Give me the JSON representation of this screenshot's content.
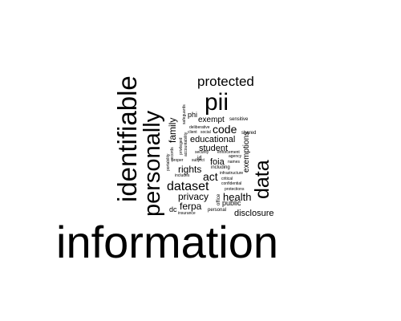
{
  "text_color": "#000000",
  "background": "#ffffff",
  "words": {
    "information": "information",
    "identifiable": "identifiable",
    "personally": "personally",
    "pii": "pii",
    "data": "data",
    "protected": "protected",
    "dataset": "dataset",
    "code": "code",
    "family": "family",
    "educational": "educational",
    "student": "student",
    "rights": "rights",
    "act": "act",
    "privacy": "privacy",
    "health": "health",
    "ferpa": "ferpa",
    "foia": "foia",
    "exempt": "exempt",
    "exemptions": "exemptions",
    "disclosure": "disclosure",
    "public": "public",
    "phi": "phi",
    "sensitive": "sensitive",
    "safeguards": "safeguards",
    "shared": "shared",
    "deliberative": "deliberative",
    "client": "client",
    "social": "social",
    "privileged": "privileged",
    "security": "security",
    "enforcement": "enforcement",
    "agency": "agency",
    "accountability": "accountability",
    "portability": "portability",
    "records": "records",
    "proper": "proper",
    "subject": "subject",
    "names": "names",
    "including": "including",
    "includes": "includes",
    "infrastructure": "infrastructure",
    "critical": "critical",
    "confidential": "confidential",
    "protections": "protections",
    "office": "office",
    "dc": "dc",
    "insurance": "insurance",
    "personal": "personal",
    "id": "id"
  }
}
